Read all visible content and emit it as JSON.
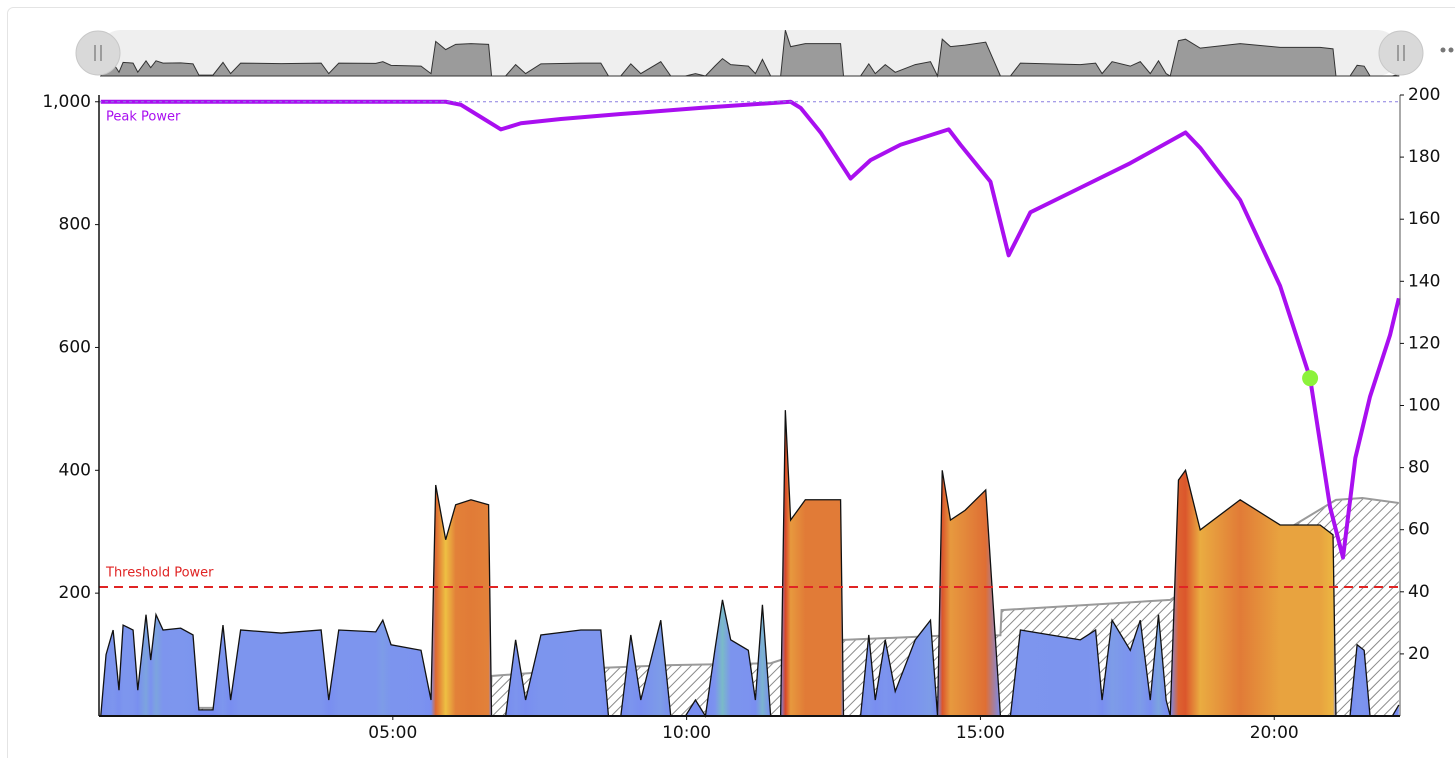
{
  "chart_data": {
    "type": "area",
    "xlim": [
      0,
      22.14
    ],
    "xticks": [
      {
        "value": 5,
        "label": "05:00"
      },
      {
        "value": 10,
        "label": "10:00"
      },
      {
        "value": 15,
        "label": "15:00"
      },
      {
        "value": 20,
        "label": "20:00"
      }
    ],
    "ylim": [
      0,
      1011
    ],
    "yticks": [
      200,
      400,
      600,
      800,
      {
        "value": 1000,
        "label": "1,000"
      }
    ],
    "y2lim": [
      0,
      200
    ],
    "y2ticks": [
      20,
      40,
      60,
      80,
      100,
      120,
      140,
      160,
      180,
      200
    ],
    "threshold": {
      "label": "Threshold Power",
      "value": 210,
      "color": "#e02424"
    },
    "series": [
      {
        "style": "gradient-area",
        "x": [
          0.03,
          0.12,
          0.24,
          0.34,
          0.41,
          0.58,
          0.66,
          0.8,
          0.88,
          0.97,
          1.09,
          1.39,
          1.6,
          1.7,
          1.94,
          2.11,
          2.24,
          2.41,
          3.1,
          3.78,
          3.91,
          4.08,
          4.71,
          4.83,
          4.97,
          5.48,
          5.65,
          5.73,
          5.9,
          6.07,
          6.33,
          6.63,
          6.68,
          6.92,
          7.09,
          7.26,
          7.52,
          8.2,
          8.54,
          8.67,
          8.88,
          9.05,
          9.22,
          9.56,
          9.73,
          9.98,
          10.15,
          10.32,
          10.48,
          10.61,
          10.75,
          11.05,
          11.17,
          11.29,
          11.43,
          11.6,
          11.68,
          11.77,
          12.02,
          12.62,
          12.67,
          12.96,
          13.1,
          13.21,
          13.38,
          13.55,
          13.89,
          14.15,
          14.27,
          14.35,
          14.49,
          14.74,
          15.09,
          15.34,
          15.51,
          15.68,
          16.7,
          16.96,
          17.07,
          17.24,
          17.55,
          17.72,
          17.89,
          18.03,
          18.16,
          18.23,
          18.37,
          18.49,
          18.74,
          19.42,
          20.1,
          20.78,
          21.0,
          21.05,
          21.29,
          21.41,
          21.53,
          21.63,
          22.01,
          22.12
        ],
        "values": [
          0,
          100,
          140,
          42,
          148,
          140,
          42,
          165,
          91,
          165,
          140,
          143,
          132,
          10,
          10,
          148,
          26,
          140,
          135,
          140,
          26,
          140,
          137,
          156,
          116,
          107,
          26,
          376,
          287,
          344,
          352,
          344,
          0,
          0,
          124,
          26,
          132,
          140,
          140,
          0,
          0,
          132,
          26,
          156,
          0,
          0,
          26,
          0,
          107,
          189,
          124,
          107,
          26,
          181,
          0,
          0,
          498,
          319,
          352,
          352,
          0,
          0,
          132,
          26,
          124,
          40,
          124,
          156,
          0,
          400,
          319,
          335,
          368,
          0,
          0,
          140,
          124,
          140,
          26,
          156,
          107,
          156,
          26,
          165,
          26,
          0,
          384,
          400,
          303,
          352,
          311,
          311,
          295,
          0,
          0,
          116,
          107,
          0,
          0,
          18
        ]
      },
      {
        "style": "hatched-area",
        "axis": "y2",
        "color": "#9a9a9a",
        "x": [
          1.7,
          6.66,
          6.68,
          8.54,
          9.73,
          11.43,
          12.67,
          14.27,
          15.34,
          15.36,
          18.23,
          21.05,
          21.5,
          22.12
        ],
        "values": [
          2.6,
          2.6,
          12.9,
          15.5,
          16.4,
          17.0,
          24.5,
          25.8,
          26.0,
          34.1,
          37.4,
          69.6,
          70.2,
          68.6
        ]
      },
      {
        "style": "line",
        "name": "Peak Power",
        "color": "#a90ff0",
        "x": [
          0.03,
          5.9,
          6.16,
          6.5,
          6.84,
          7.18,
          7.86,
          8.88,
          10.24,
          11.77,
          11.94,
          12.28,
          12.79,
          13.13,
          13.64,
          14.46,
          14.66,
          15.17,
          15.48,
          15.85,
          16.7,
          17.55,
          18.49,
          18.74,
          19.42,
          20.1,
          20.61,
          20.95,
          21.17,
          21.38,
          21.63,
          21.97,
          22.12
        ],
        "values": [
          1000,
          1000,
          995,
          975,
          955,
          965,
          972,
          980,
          990,
          1000,
          990,
          950,
          875,
          905,
          930,
          955,
          930,
          870,
          750,
          820,
          860,
          900,
          950,
          925,
          840,
          700,
          550,
          340,
          258,
          420,
          520,
          620,
          680
        ]
      }
    ]
  }
}
